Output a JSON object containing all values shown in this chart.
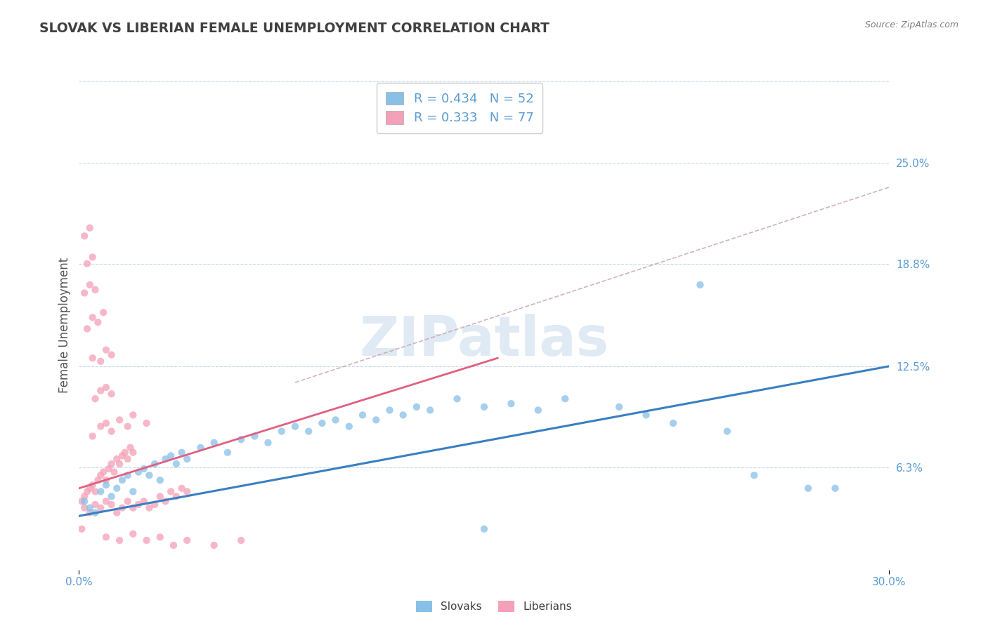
{
  "title": "SLOVAK VS LIBERIAN FEMALE UNEMPLOYMENT CORRELATION CHART",
  "source": "Source: ZipAtlas.com",
  "ylabel": "Female Unemployment",
  "xlim": [
    0.0,
    0.3
  ],
  "ylim": [
    0.0,
    0.3
  ],
  "xticklabels": [
    "0.0%",
    "30.0%"
  ],
  "ytick_labels_right": [
    "6.3%",
    "12.5%",
    "18.8%",
    "25.0%"
  ],
  "ytick_vals_right": [
    0.063,
    0.125,
    0.188,
    0.25
  ],
  "slovak_color": "#88c0e8",
  "liberian_color": "#f4a0b8",
  "slovak_line_color": "#3a7fc1",
  "liberian_line_color": "#e06080",
  "dashed_line_color": "#c8a0a8",
  "R_slovak": 0.434,
  "N_slovak": 52,
  "R_liberian": 0.333,
  "N_liberian": 77,
  "title_color": "#404040",
  "axis_label_color": "#5b9bd5",
  "watermark": "ZIPatlas",
  "watermark_color": "#ccdcee",
  "background_color": "#ffffff",
  "grid_color": "#c8d8e8",
  "slovak_line_x": [
    0.0,
    0.3
  ],
  "slovak_line_y": [
    0.033,
    0.125
  ],
  "liberian_line_x": [
    0.0,
    0.155
  ],
  "liberian_line_y": [
    0.05,
    0.13
  ],
  "dashed_line_x": [
    0.08,
    0.3
  ],
  "dashed_line_y": [
    0.115,
    0.235
  ],
  "slovak_scatter": [
    [
      0.002,
      0.042
    ],
    [
      0.004,
      0.038
    ],
    [
      0.006,
      0.035
    ],
    [
      0.008,
      0.048
    ],
    [
      0.01,
      0.052
    ],
    [
      0.012,
      0.045
    ],
    [
      0.014,
      0.05
    ],
    [
      0.016,
      0.055
    ],
    [
      0.018,
      0.058
    ],
    [
      0.02,
      0.048
    ],
    [
      0.022,
      0.06
    ],
    [
      0.024,
      0.062
    ],
    [
      0.026,
      0.058
    ],
    [
      0.028,
      0.065
    ],
    [
      0.03,
      0.055
    ],
    [
      0.032,
      0.068
    ],
    [
      0.034,
      0.07
    ],
    [
      0.036,
      0.065
    ],
    [
      0.038,
      0.072
    ],
    [
      0.04,
      0.068
    ],
    [
      0.045,
      0.075
    ],
    [
      0.05,
      0.078
    ],
    [
      0.055,
      0.072
    ],
    [
      0.06,
      0.08
    ],
    [
      0.065,
      0.082
    ],
    [
      0.07,
      0.078
    ],
    [
      0.075,
      0.085
    ],
    [
      0.08,
      0.088
    ],
    [
      0.085,
      0.085
    ],
    [
      0.09,
      0.09
    ],
    [
      0.095,
      0.092
    ],
    [
      0.1,
      0.088
    ],
    [
      0.105,
      0.095
    ],
    [
      0.11,
      0.092
    ],
    [
      0.115,
      0.098
    ],
    [
      0.12,
      0.095
    ],
    [
      0.125,
      0.1
    ],
    [
      0.13,
      0.098
    ],
    [
      0.14,
      0.105
    ],
    [
      0.15,
      0.1
    ],
    [
      0.16,
      0.102
    ],
    [
      0.17,
      0.098
    ],
    [
      0.18,
      0.105
    ],
    [
      0.2,
      0.1
    ],
    [
      0.21,
      0.095
    ],
    [
      0.22,
      0.09
    ],
    [
      0.24,
      0.085
    ],
    [
      0.25,
      0.058
    ],
    [
      0.27,
      0.05
    ],
    [
      0.28,
      0.05
    ],
    [
      0.15,
      0.025
    ],
    [
      0.23,
      0.175
    ]
  ],
  "liberian_scatter": [
    [
      0.001,
      0.042
    ],
    [
      0.002,
      0.045
    ],
    [
      0.003,
      0.048
    ],
    [
      0.004,
      0.05
    ],
    [
      0.005,
      0.052
    ],
    [
      0.006,
      0.048
    ],
    [
      0.007,
      0.055
    ],
    [
      0.008,
      0.058
    ],
    [
      0.009,
      0.06
    ],
    [
      0.01,
      0.055
    ],
    [
      0.011,
      0.062
    ],
    [
      0.012,
      0.065
    ],
    [
      0.013,
      0.06
    ],
    [
      0.014,
      0.068
    ],
    [
      0.015,
      0.065
    ],
    [
      0.016,
      0.07
    ],
    [
      0.017,
      0.072
    ],
    [
      0.018,
      0.068
    ],
    [
      0.019,
      0.075
    ],
    [
      0.02,
      0.072
    ],
    [
      0.002,
      0.038
    ],
    [
      0.004,
      0.035
    ],
    [
      0.006,
      0.04
    ],
    [
      0.008,
      0.038
    ],
    [
      0.01,
      0.042
    ],
    [
      0.012,
      0.04
    ],
    [
      0.014,
      0.035
    ],
    [
      0.016,
      0.038
    ],
    [
      0.018,
      0.042
    ],
    [
      0.02,
      0.038
    ],
    [
      0.022,
      0.04
    ],
    [
      0.024,
      0.042
    ],
    [
      0.026,
      0.038
    ],
    [
      0.028,
      0.04
    ],
    [
      0.03,
      0.045
    ],
    [
      0.032,
      0.042
    ],
    [
      0.034,
      0.048
    ],
    [
      0.036,
      0.045
    ],
    [
      0.038,
      0.05
    ],
    [
      0.04,
      0.048
    ],
    [
      0.005,
      0.082
    ],
    [
      0.008,
      0.088
    ],
    [
      0.01,
      0.09
    ],
    [
      0.012,
      0.085
    ],
    [
      0.015,
      0.092
    ],
    [
      0.018,
      0.088
    ],
    [
      0.02,
      0.095
    ],
    [
      0.025,
      0.09
    ],
    [
      0.006,
      0.105
    ],
    [
      0.008,
      0.11
    ],
    [
      0.01,
      0.112
    ],
    [
      0.012,
      0.108
    ],
    [
      0.005,
      0.13
    ],
    [
      0.008,
      0.128
    ],
    [
      0.01,
      0.135
    ],
    [
      0.012,
      0.132
    ],
    [
      0.003,
      0.148
    ],
    [
      0.005,
      0.155
    ],
    [
      0.007,
      0.152
    ],
    [
      0.009,
      0.158
    ],
    [
      0.002,
      0.17
    ],
    [
      0.004,
      0.175
    ],
    [
      0.006,
      0.172
    ],
    [
      0.003,
      0.188
    ],
    [
      0.005,
      0.192
    ],
    [
      0.002,
      0.205
    ],
    [
      0.004,
      0.21
    ],
    [
      0.01,
      0.02
    ],
    [
      0.015,
      0.018
    ],
    [
      0.02,
      0.022
    ],
    [
      0.025,
      0.018
    ],
    [
      0.03,
      0.02
    ],
    [
      0.035,
      0.015
    ],
    [
      0.04,
      0.018
    ],
    [
      0.05,
      0.015
    ],
    [
      0.06,
      0.018
    ],
    [
      0.001,
      0.025
    ]
  ]
}
